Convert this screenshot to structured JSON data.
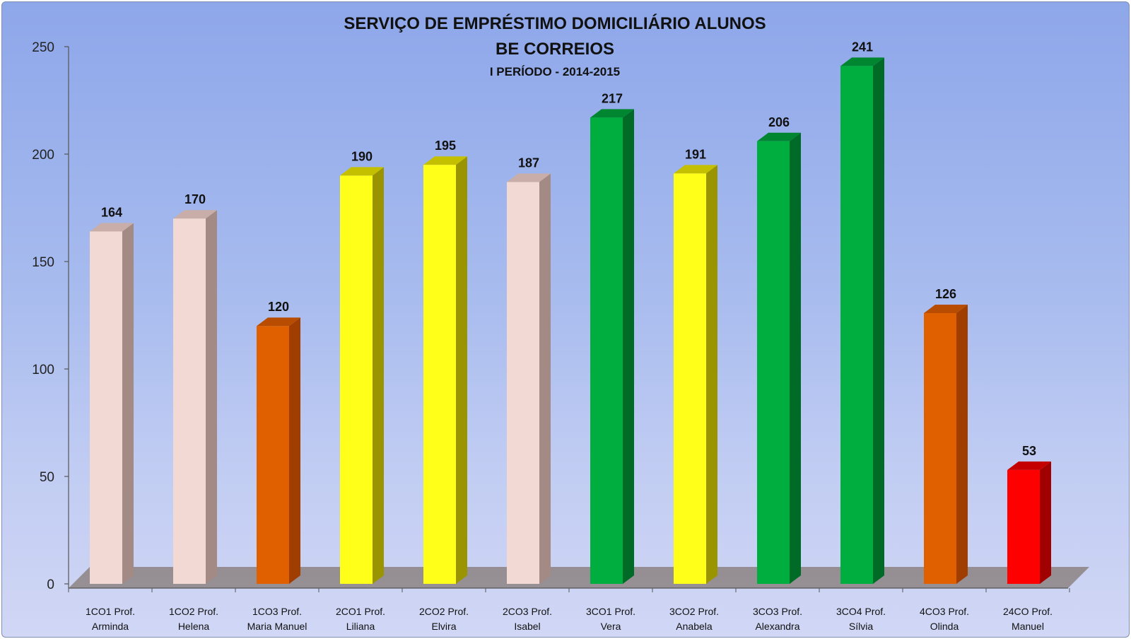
{
  "chart_data": {
    "type": "bar",
    "title": "SERVIÇO DE EMPRÉSTIMO DOMICILIÁRIO ALUNOS",
    "subtitle": "BE CORREIOS",
    "subtitle2": "I PERÍODO - 2014-2015",
    "xlabel": "",
    "ylabel": "",
    "ylim": [
      0,
      250
    ],
    "yticks": [
      "0",
      "50",
      "100",
      "150",
      "200",
      "250"
    ],
    "grid": false,
    "legend": "none",
    "categories": [
      [
        "1CO1  Prof.",
        "Arminda"
      ],
      [
        "1CO2 Prof.",
        "Helena"
      ],
      [
        "1CO3 Prof.",
        "Maria Manuel"
      ],
      [
        "2CO1 Prof.",
        "Liliana"
      ],
      [
        "2CO2 Prof.",
        "Elvira"
      ],
      [
        "2CO3 Prof.",
        "Isabel"
      ],
      [
        "3CO1 Prof.",
        "Vera"
      ],
      [
        "3CO2 Prof.",
        "Anabela"
      ],
      [
        "3CO3 Prof.",
        "Alexandra"
      ],
      [
        "3CO4 Prof.",
        "Sílvia"
      ],
      [
        "4CO3 Prof.",
        "Olinda"
      ],
      [
        "24CO Prof.",
        "Manuel"
      ]
    ],
    "values": [
      164,
      170,
      120,
      190,
      195,
      187,
      217,
      191,
      206,
      241,
      126,
      53
    ],
    "bar_colors": [
      "#f2d9d3",
      "#f2d9d3",
      "#e06000",
      "#ffff1a",
      "#ffff1a",
      "#f2d9d3",
      "#00ad3f",
      "#ffff1a",
      "#00ad3f",
      "#00ad3f",
      "#e06000",
      "#ff0000"
    ],
    "bar_side_colors": [
      "#a48a85",
      "#a48a85",
      "#a03d00",
      "#9a9400",
      "#9a9400",
      "#a48a85",
      "#006b27",
      "#9a9400",
      "#006b27",
      "#006b27",
      "#a03d00",
      "#a00000"
    ],
    "bar_top_colors": [
      "#c8ada8",
      "#c8ada8",
      "#b84c00",
      "#c4c000",
      "#c4c000",
      "#c8ada8",
      "#008531",
      "#c4c000",
      "#008531",
      "#008531",
      "#b84c00",
      "#c40000"
    ],
    "floor_color": "#8c8383"
  }
}
